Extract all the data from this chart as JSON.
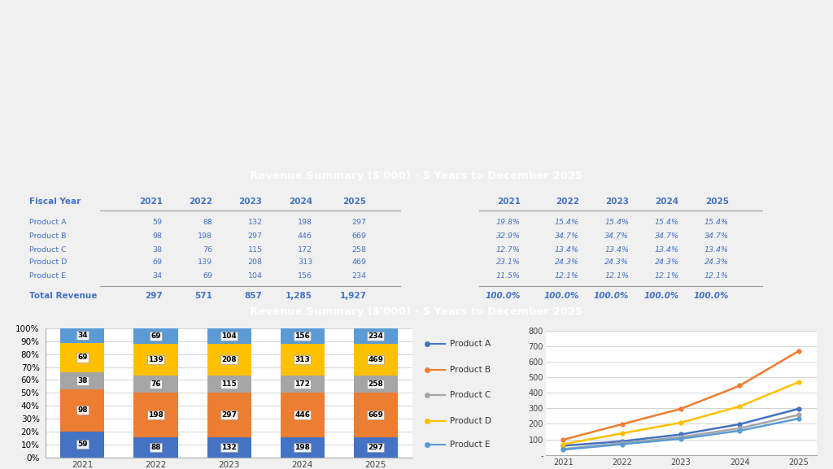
{
  "title": "Revenue Summary ($'000) - 5 Years to December 2025",
  "years": [
    2021,
    2022,
    2023,
    2024,
    2025
  ],
  "products": [
    "Product A",
    "Product B",
    "Product C",
    "Product D",
    "Product E"
  ],
  "values": {
    "Product A": [
      59,
      88,
      132,
      198,
      297
    ],
    "Product B": [
      98,
      198,
      297,
      446,
      669
    ],
    "Product C": [
      38,
      76,
      115,
      172,
      258
    ],
    "Product D": [
      69,
      139,
      208,
      313,
      469
    ],
    "Product E": [
      34,
      69,
      104,
      156,
      234
    ]
  },
  "totals": [
    297,
    571,
    857,
    1285,
    1927
  ],
  "totals_str": [
    "297",
    "571",
    "857",
    "1,285",
    "1,927"
  ],
  "percentages": {
    "Product A": [
      "19.8%",
      "15.4%",
      "15.4%",
      "15.4%",
      "15.4%"
    ],
    "Product B": [
      "32.9%",
      "34.7%",
      "34.7%",
      "34.7%",
      "34.7%"
    ],
    "Product C": [
      "12.7%",
      "13.4%",
      "13.4%",
      "13.4%",
      "13.4%"
    ],
    "Product D": [
      "23.1%",
      "24.3%",
      "24.3%",
      "24.3%",
      "24.3%"
    ],
    "Product E": [
      "11.5%",
      "12.1%",
      "12.1%",
      "12.1%",
      "12.1%"
    ]
  },
  "total_pct": [
    "100.0%",
    "100.0%",
    "100.0%",
    "100.0%",
    "100.0%"
  ],
  "bar_colors": {
    "Product A": "#4472C4",
    "Product B": "#ED7D31",
    "Product C": "#A5A5A5",
    "Product D": "#FFC000",
    "Product E": "#5B9BD5"
  },
  "line_colors": {
    "Product A": "#4472C4",
    "Product B": "#ED7D31",
    "Product C": "#A5A5A5",
    "Product D": "#FFC000",
    "Product E": "#5B9BD5"
  },
  "header_bg": "#4472C4",
  "header_text": "#FFFFFF",
  "table_label_color": "#4472C4",
  "bg_color": "#FFFFFF",
  "outer_bg": "#F0F0F0",
  "stack_order": [
    "Product A",
    "Product B",
    "Product C",
    "Product D",
    "Product E"
  ],
  "legend_order": [
    "Product A",
    "Product B",
    "Product C",
    "Product D",
    "Product E"
  ]
}
